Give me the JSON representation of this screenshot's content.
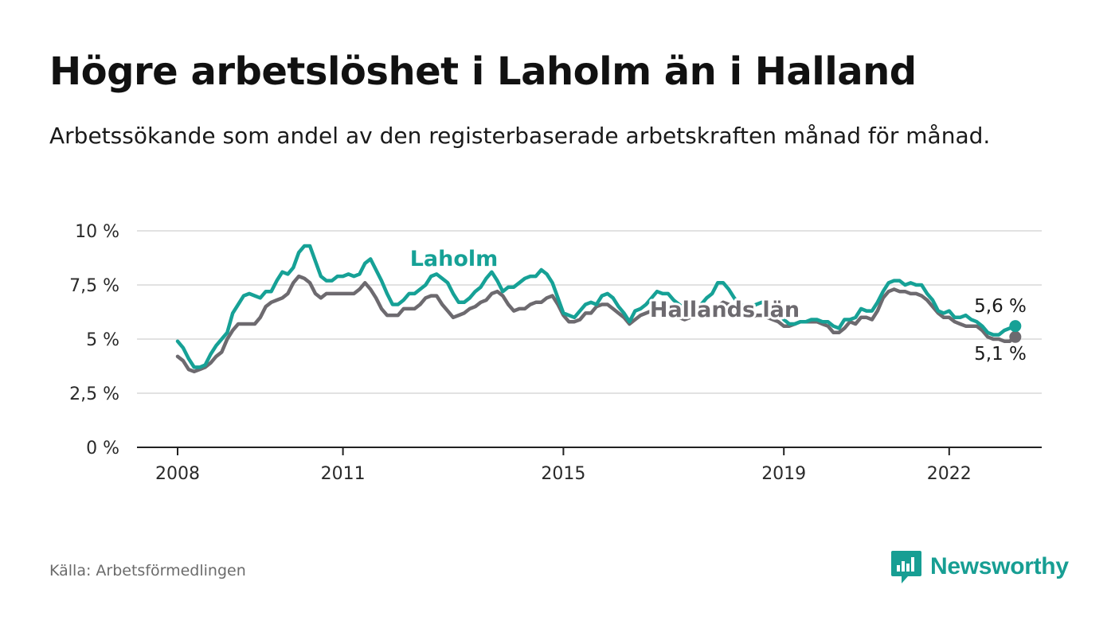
{
  "title": "Högre arbetslöshet i Laholm än i Halland",
  "subtitle": "Arbetssökande som andel av den registerbaserade arbetskraften månad för månad.",
  "source": "Källa: Arbetsförmedlingen",
  "brand": "Newsworthy",
  "colors": {
    "laholm": "#16a196",
    "halland": "#6d6a6f",
    "brand": "#179e93",
    "grid": "#d9d9d9",
    "axis": "#222222"
  },
  "chart_data": {
    "type": "line",
    "title": "Högre arbetslöshet i Laholm än i Halland",
    "xlabel": "",
    "ylabel": "",
    "ylim": [
      0,
      10
    ],
    "xlim": [
      2007.9,
      2023.0
    ],
    "y_ticks": [
      0,
      2.5,
      5,
      7.5,
      10
    ],
    "y_tick_labels": [
      "0 %",
      "2,5 %",
      "5 %",
      "7,5 %",
      "10 %"
    ],
    "x_ticks": [
      2008,
      2011,
      2015,
      2019,
      2022
    ],
    "x_tick_labels": [
      "2008",
      "2011",
      "2015",
      "2019",
      "2022"
    ],
    "grid": true,
    "series": [
      {
        "name": "Laholm",
        "label": "Laholm",
        "end_label": "5,6 %",
        "end_value": 5.6,
        "points": [
          [
            2008.0,
            4.9
          ],
          [
            2008.1,
            4.6
          ],
          [
            2008.2,
            4.1
          ],
          [
            2008.3,
            3.7
          ],
          [
            2008.4,
            3.7
          ],
          [
            2008.5,
            3.8
          ],
          [
            2008.6,
            4.3
          ],
          [
            2008.7,
            4.7
          ],
          [
            2008.8,
            5.0
          ],
          [
            2008.9,
            5.3
          ],
          [
            2009.0,
            6.2
          ],
          [
            2009.1,
            6.6
          ],
          [
            2009.2,
            7.0
          ],
          [
            2009.3,
            7.1
          ],
          [
            2009.4,
            7.0
          ],
          [
            2009.5,
            6.9
          ],
          [
            2009.6,
            7.2
          ],
          [
            2009.7,
            7.2
          ],
          [
            2009.8,
            7.7
          ],
          [
            2009.9,
            8.1
          ],
          [
            2010.0,
            8.0
          ],
          [
            2010.1,
            8.3
          ],
          [
            2010.2,
            9.0
          ],
          [
            2010.3,
            9.3
          ],
          [
            2010.4,
            9.3
          ],
          [
            2010.5,
            8.6
          ],
          [
            2010.6,
            7.9
          ],
          [
            2010.7,
            7.7
          ],
          [
            2010.8,
            7.7
          ],
          [
            2010.9,
            7.9
          ],
          [
            2011.0,
            7.9
          ],
          [
            2011.1,
            8.0
          ],
          [
            2011.2,
            7.9
          ],
          [
            2011.3,
            8.0
          ],
          [
            2011.4,
            8.5
          ],
          [
            2011.5,
            8.7
          ],
          [
            2011.6,
            8.2
          ],
          [
            2011.7,
            7.7
          ],
          [
            2011.8,
            7.1
          ],
          [
            2011.9,
            6.6
          ],
          [
            2012.0,
            6.6
          ],
          [
            2012.1,
            6.8
          ],
          [
            2012.2,
            7.1
          ],
          [
            2012.3,
            7.1
          ],
          [
            2012.4,
            7.3
          ],
          [
            2012.5,
            7.5
          ],
          [
            2012.6,
            7.9
          ],
          [
            2012.7,
            8.0
          ],
          [
            2012.8,
            7.8
          ],
          [
            2012.9,
            7.6
          ],
          [
            2013.0,
            7.1
          ],
          [
            2013.1,
            6.7
          ],
          [
            2013.2,
            6.7
          ],
          [
            2013.3,
            6.9
          ],
          [
            2013.4,
            7.2
          ],
          [
            2013.5,
            7.4
          ],
          [
            2013.6,
            7.8
          ],
          [
            2013.7,
            8.1
          ],
          [
            2013.8,
            7.7
          ],
          [
            2013.9,
            7.2
          ],
          [
            2014.0,
            7.4
          ],
          [
            2014.1,
            7.4
          ],
          [
            2014.2,
            7.6
          ],
          [
            2014.3,
            7.8
          ],
          [
            2014.4,
            7.9
          ],
          [
            2014.5,
            7.9
          ],
          [
            2014.6,
            8.2
          ],
          [
            2014.7,
            8.0
          ],
          [
            2014.8,
            7.6
          ],
          [
            2014.9,
            6.9
          ],
          [
            2015.0,
            6.2
          ],
          [
            2015.1,
            6.1
          ],
          [
            2015.2,
            6.0
          ],
          [
            2015.3,
            6.3
          ],
          [
            2015.4,
            6.6
          ],
          [
            2015.5,
            6.7
          ],
          [
            2015.6,
            6.6
          ],
          [
            2015.7,
            7.0
          ],
          [
            2015.8,
            7.1
          ],
          [
            2015.9,
            6.9
          ],
          [
            2016.0,
            6.5
          ],
          [
            2016.1,
            6.2
          ],
          [
            2016.2,
            5.8
          ],
          [
            2016.3,
            6.3
          ],
          [
            2016.4,
            6.4
          ],
          [
            2016.5,
            6.6
          ],
          [
            2016.6,
            6.9
          ],
          [
            2016.7,
            7.2
          ],
          [
            2016.8,
            7.1
          ],
          [
            2016.9,
            7.1
          ],
          [
            2017.0,
            6.8
          ],
          [
            2017.1,
            6.6
          ],
          [
            2017.2,
            6.4
          ],
          [
            2017.3,
            6.3
          ],
          [
            2017.4,
            6.4
          ],
          [
            2017.5,
            6.6
          ],
          [
            2017.6,
            6.9
          ],
          [
            2017.7,
            7.1
          ],
          [
            2017.8,
            7.6
          ],
          [
            2017.9,
            7.6
          ],
          [
            2018.0,
            7.3
          ],
          [
            2018.1,
            6.9
          ],
          [
            2018.2,
            6.6
          ],
          [
            2018.3,
            6.5
          ],
          [
            2018.4,
            6.5
          ],
          [
            2018.5,
            6.6
          ],
          [
            2018.6,
            6.7
          ],
          [
            2018.7,
            6.6
          ],
          [
            2018.8,
            6.5
          ],
          [
            2018.9,
            6.3
          ],
          [
            2019.0,
            5.9
          ],
          [
            2019.1,
            5.7
          ],
          [
            2019.2,
            5.7
          ],
          [
            2019.3,
            5.8
          ],
          [
            2019.4,
            5.8
          ],
          [
            2019.5,
            5.9
          ],
          [
            2019.6,
            5.9
          ],
          [
            2019.7,
            5.8
          ],
          [
            2019.8,
            5.8
          ],
          [
            2019.9,
            5.6
          ],
          [
            2020.0,
            5.5
          ],
          [
            2020.1,
            5.9
          ],
          [
            2020.2,
            5.9
          ],
          [
            2020.3,
            6.0
          ],
          [
            2020.4,
            6.4
          ],
          [
            2020.5,
            6.3
          ],
          [
            2020.6,
            6.3
          ],
          [
            2020.7,
            6.7
          ],
          [
            2020.8,
            7.2
          ],
          [
            2020.9,
            7.6
          ],
          [
            2021.0,
            7.7
          ],
          [
            2021.1,
            7.7
          ],
          [
            2021.2,
            7.5
          ],
          [
            2021.3,
            7.6
          ],
          [
            2021.4,
            7.5
          ],
          [
            2021.5,
            7.5
          ],
          [
            2021.6,
            7.1
          ],
          [
            2021.7,
            6.8
          ],
          [
            2021.8,
            6.3
          ],
          [
            2021.9,
            6.2
          ],
          [
            2022.0,
            6.3
          ],
          [
            2022.1,
            6.0
          ],
          [
            2022.2,
            6.0
          ],
          [
            2022.3,
            6.1
          ],
          [
            2022.4,
            5.9
          ],
          [
            2022.5,
            5.8
          ],
          [
            2022.6,
            5.6
          ],
          [
            2022.7,
            5.3
          ],
          [
            2022.8,
            5.2
          ],
          [
            2022.9,
            5.2
          ],
          [
            2023.0,
            5.4
          ],
          [
            2023.1,
            5.5
          ],
          [
            2023.2,
            5.6
          ]
        ]
      },
      {
        "name": "Hallands län",
        "label": "Hallands län",
        "end_label": "5,1 %",
        "end_value": 5.1,
        "points": [
          [
            2008.0,
            4.2
          ],
          [
            2008.1,
            4.0
          ],
          [
            2008.2,
            3.6
          ],
          [
            2008.3,
            3.5
          ],
          [
            2008.4,
            3.6
          ],
          [
            2008.5,
            3.7
          ],
          [
            2008.6,
            3.9
          ],
          [
            2008.7,
            4.2
          ],
          [
            2008.8,
            4.4
          ],
          [
            2008.9,
            5.0
          ],
          [
            2009.0,
            5.4
          ],
          [
            2009.1,
            5.7
          ],
          [
            2009.2,
            5.7
          ],
          [
            2009.3,
            5.7
          ],
          [
            2009.4,
            5.7
          ],
          [
            2009.5,
            6.0
          ],
          [
            2009.6,
            6.5
          ],
          [
            2009.7,
            6.7
          ],
          [
            2009.8,
            6.8
          ],
          [
            2009.9,
            6.9
          ],
          [
            2010.0,
            7.1
          ],
          [
            2010.1,
            7.6
          ],
          [
            2010.2,
            7.9
          ],
          [
            2010.3,
            7.8
          ],
          [
            2010.4,
            7.6
          ],
          [
            2010.5,
            7.1
          ],
          [
            2010.6,
            6.9
          ],
          [
            2010.7,
            7.1
          ],
          [
            2010.8,
            7.1
          ],
          [
            2010.9,
            7.1
          ],
          [
            2011.0,
            7.1
          ],
          [
            2011.1,
            7.1
          ],
          [
            2011.2,
            7.1
          ],
          [
            2011.3,
            7.3
          ],
          [
            2011.4,
            7.6
          ],
          [
            2011.5,
            7.3
          ],
          [
            2011.6,
            6.9
          ],
          [
            2011.7,
            6.4
          ],
          [
            2011.8,
            6.1
          ],
          [
            2011.9,
            6.1
          ],
          [
            2012.0,
            6.1
          ],
          [
            2012.1,
            6.4
          ],
          [
            2012.2,
            6.4
          ],
          [
            2012.3,
            6.4
          ],
          [
            2012.4,
            6.6
          ],
          [
            2012.5,
            6.9
          ],
          [
            2012.6,
            7.0
          ],
          [
            2012.7,
            7.0
          ],
          [
            2012.8,
            6.6
          ],
          [
            2012.9,
            6.3
          ],
          [
            2013.0,
            6.0
          ],
          [
            2013.1,
            6.1
          ],
          [
            2013.2,
            6.2
          ],
          [
            2013.3,
            6.4
          ],
          [
            2013.4,
            6.5
          ],
          [
            2013.5,
            6.7
          ],
          [
            2013.6,
            6.8
          ],
          [
            2013.7,
            7.1
          ],
          [
            2013.8,
            7.2
          ],
          [
            2013.9,
            7.0
          ],
          [
            2014.0,
            6.6
          ],
          [
            2014.1,
            6.3
          ],
          [
            2014.2,
            6.4
          ],
          [
            2014.3,
            6.4
          ],
          [
            2014.4,
            6.6
          ],
          [
            2014.5,
            6.7
          ],
          [
            2014.6,
            6.7
          ],
          [
            2014.7,
            6.9
          ],
          [
            2014.8,
            7.0
          ],
          [
            2014.9,
            6.6
          ],
          [
            2015.0,
            6.1
          ],
          [
            2015.1,
            5.8
          ],
          [
            2015.2,
            5.8
          ],
          [
            2015.3,
            5.9
          ],
          [
            2015.4,
            6.2
          ],
          [
            2015.5,
            6.2
          ],
          [
            2015.6,
            6.5
          ],
          [
            2015.7,
            6.6
          ],
          [
            2015.8,
            6.6
          ],
          [
            2015.9,
            6.4
          ],
          [
            2016.0,
            6.2
          ],
          [
            2016.1,
            6.0
          ],
          [
            2016.2,
            5.7
          ],
          [
            2016.3,
            5.9
          ],
          [
            2016.4,
            6.1
          ],
          [
            2016.5,
            6.2
          ],
          [
            2016.6,
            6.3
          ],
          [
            2016.7,
            6.5
          ],
          [
            2016.8,
            6.5
          ],
          [
            2016.9,
            6.4
          ],
          [
            2017.0,
            6.3
          ],
          [
            2017.1,
            6.0
          ],
          [
            2017.2,
            5.9
          ],
          [
            2017.3,
            6.0
          ],
          [
            2017.4,
            6.1
          ],
          [
            2017.5,
            6.2
          ],
          [
            2017.6,
            6.2
          ],
          [
            2017.7,
            6.3
          ],
          [
            2017.8,
            6.5
          ],
          [
            2017.9,
            6.7
          ],
          [
            2018.0,
            6.6
          ],
          [
            2018.1,
            6.3
          ],
          [
            2018.2,
            6.1
          ],
          [
            2018.3,
            6.0
          ],
          [
            2018.4,
            6.0
          ],
          [
            2018.5,
            6.1
          ],
          [
            2018.6,
            6.1
          ],
          [
            2018.7,
            6.0
          ],
          [
            2018.8,
            5.9
          ],
          [
            2018.9,
            5.8
          ],
          [
            2019.0,
            5.6
          ],
          [
            2019.1,
            5.6
          ],
          [
            2019.2,
            5.7
          ],
          [
            2019.3,
            5.8
          ],
          [
            2019.4,
            5.8
          ],
          [
            2019.5,
            5.8
          ],
          [
            2019.6,
            5.8
          ],
          [
            2019.7,
            5.7
          ],
          [
            2019.8,
            5.6
          ],
          [
            2019.9,
            5.3
          ],
          [
            2020.0,
            5.3
          ],
          [
            2020.1,
            5.5
          ],
          [
            2020.2,
            5.8
          ],
          [
            2020.3,
            5.7
          ],
          [
            2020.4,
            6.0
          ],
          [
            2020.5,
            6.0
          ],
          [
            2020.6,
            5.9
          ],
          [
            2020.7,
            6.3
          ],
          [
            2020.8,
            6.9
          ],
          [
            2020.9,
            7.2
          ],
          [
            2021.0,
            7.3
          ],
          [
            2021.1,
            7.2
          ],
          [
            2021.2,
            7.2
          ],
          [
            2021.3,
            7.1
          ],
          [
            2021.4,
            7.1
          ],
          [
            2021.5,
            7.0
          ],
          [
            2021.6,
            6.8
          ],
          [
            2021.7,
            6.5
          ],
          [
            2021.8,
            6.2
          ],
          [
            2021.9,
            6.0
          ],
          [
            2022.0,
            6.0
          ],
          [
            2022.1,
            5.8
          ],
          [
            2022.2,
            5.7
          ],
          [
            2022.3,
            5.6
          ],
          [
            2022.4,
            5.6
          ],
          [
            2022.5,
            5.6
          ],
          [
            2022.6,
            5.4
          ],
          [
            2022.7,
            5.1
          ],
          [
            2022.8,
            5.0
          ],
          [
            2022.9,
            5.0
          ],
          [
            2023.0,
            4.9
          ],
          [
            2023.1,
            4.9
          ],
          [
            2023.2,
            5.1
          ]
        ]
      }
    ]
  }
}
